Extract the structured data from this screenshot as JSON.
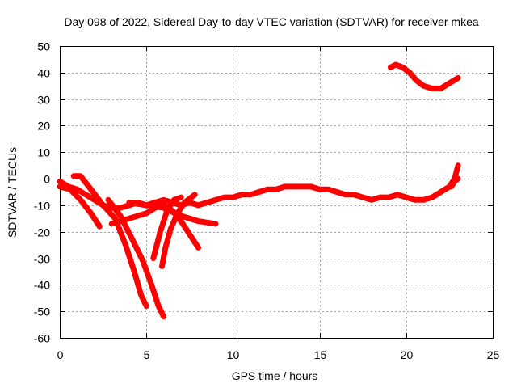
{
  "chart_data": {
    "type": "line",
    "title": "Day 098 of 2022, Sidereal Day-to-day VTEC variation (SDTVAR) for receiver mkea",
    "xlabel": "GPS time / hours",
    "ylabel": "SDTVAR / TECUs",
    "xlim": [
      0,
      25
    ],
    "ylim": [
      -60,
      50
    ],
    "xticks": [
      0,
      5,
      10,
      15,
      20,
      25
    ],
    "yticks": [
      -60,
      -50,
      -40,
      -30,
      -20,
      -10,
      0,
      10,
      20,
      30,
      40,
      50
    ],
    "grid": true,
    "color": "#ff0000",
    "series": [
      {
        "name": "arc-main-1",
        "x": [
          0.0,
          0.5,
          1.0,
          1.5,
          2.0,
          2.5,
          3.0,
          3.5,
          4.0,
          4.5,
          5.0,
          5.5,
          6.0,
          6.5,
          7.0,
          7.5,
          8.0,
          8.5,
          9.0,
          9.5,
          10.0,
          10.5,
          11.0
        ],
        "y": [
          -1,
          -3,
          -4,
          -6,
          -8,
          -10,
          -11,
          -11,
          -10,
          -9,
          -10,
          -9,
          -8,
          -9,
          -10,
          -9,
          -10,
          -9,
          -8,
          -7,
          -7,
          -6,
          -6
        ]
      },
      {
        "name": "arc-main-2",
        "x": [
          11.0,
          11.5,
          12.0,
          12.5,
          13.0,
          13.5,
          14.0,
          14.5,
          15.0,
          15.5,
          16.0,
          16.5,
          17.0,
          17.5,
          18.0,
          18.5,
          19.0,
          19.5,
          20.0,
          20.5,
          21.0,
          21.5,
          22.0,
          22.5,
          22.8,
          23.0
        ],
        "y": [
          -6,
          -5,
          -4,
          -4,
          -3,
          -3,
          -3,
          -3,
          -4,
          -4,
          -5,
          -6,
          -6,
          -7,
          -8,
          -7,
          -7,
          -6,
          -7,
          -8,
          -8,
          -7,
          -5,
          -3,
          0,
          5
        ]
      },
      {
        "name": "arc-dip-a",
        "x": [
          0.8,
          1.2,
          1.8,
          2.5,
          3.2,
          3.8,
          4.3,
          4.7,
          5.0
        ],
        "y": [
          1,
          1,
          -4,
          -10,
          -15,
          -25,
          -35,
          -44,
          -48
        ]
      },
      {
        "name": "arc-dip-b",
        "x": [
          2.8,
          3.5,
          4.2,
          4.8,
          5.3,
          5.7,
          6.0
        ],
        "y": [
          -8,
          -14,
          -23,
          -31,
          -40,
          -48,
          -52
        ]
      },
      {
        "name": "arc-small-c",
        "x": [
          0.0,
          0.6,
          1.2,
          1.8,
          2.3
        ],
        "y": [
          -3,
          -4,
          -8,
          -13,
          -18
        ]
      },
      {
        "name": "arc-recover-d",
        "x": [
          5.4,
          5.8,
          6.2,
          6.6,
          7.0
        ],
        "y": [
          -30,
          -20,
          -12,
          -8,
          -7
        ]
      },
      {
        "name": "arc-recover-e",
        "x": [
          5.9,
          6.1,
          6.4,
          6.8,
          7.2,
          7.8
        ],
        "y": [
          -33,
          -26,
          -19,
          -13,
          -9,
          -6
        ]
      },
      {
        "name": "arc-branch-f",
        "x": [
          4.0,
          5.0,
          6.0,
          7.0,
          8.0,
          9.0
        ],
        "y": [
          -9,
          -10,
          -11,
          -14,
          -16,
          -17
        ]
      },
      {
        "name": "arc-branch-g",
        "x": [
          6.0,
          6.5,
          7.0,
          7.5,
          8.0
        ],
        "y": [
          -10,
          -12,
          -16,
          -21,
          -26
        ]
      },
      {
        "name": "arc-branch-h",
        "x": [
          3.0,
          4.0,
          5.0,
          5.5,
          6.0
        ],
        "y": [
          -17,
          -15,
          -13,
          -11,
          -10
        ]
      },
      {
        "name": "arc-upper",
        "x": [
          19.1,
          19.4,
          19.8,
          20.2,
          20.6,
          21.0,
          21.5,
          22.0,
          22.5,
          23.0
        ],
        "y": [
          42,
          43,
          42,
          40,
          37,
          35,
          34,
          34,
          36,
          38
        ]
      },
      {
        "name": "arc-end",
        "x": [
          22.6,
          22.8,
          23.0
        ],
        "y": [
          -3,
          -1,
          0
        ]
      }
    ]
  }
}
